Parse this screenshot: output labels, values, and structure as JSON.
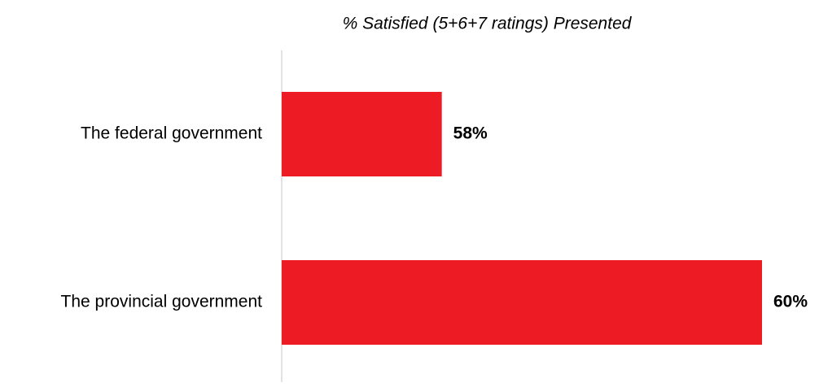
{
  "chart_data": {
    "type": "bar",
    "orientation": "horizontal",
    "title": "% Satisfied (5+6+7 ratings) Presented",
    "categories": [
      "The federal government",
      "The provincial government"
    ],
    "values": [
      58,
      60
    ],
    "value_labels": [
      "58%",
      "60%"
    ],
    "color": "#ed1c24",
    "xlim": [
      57,
      60
    ]
  }
}
